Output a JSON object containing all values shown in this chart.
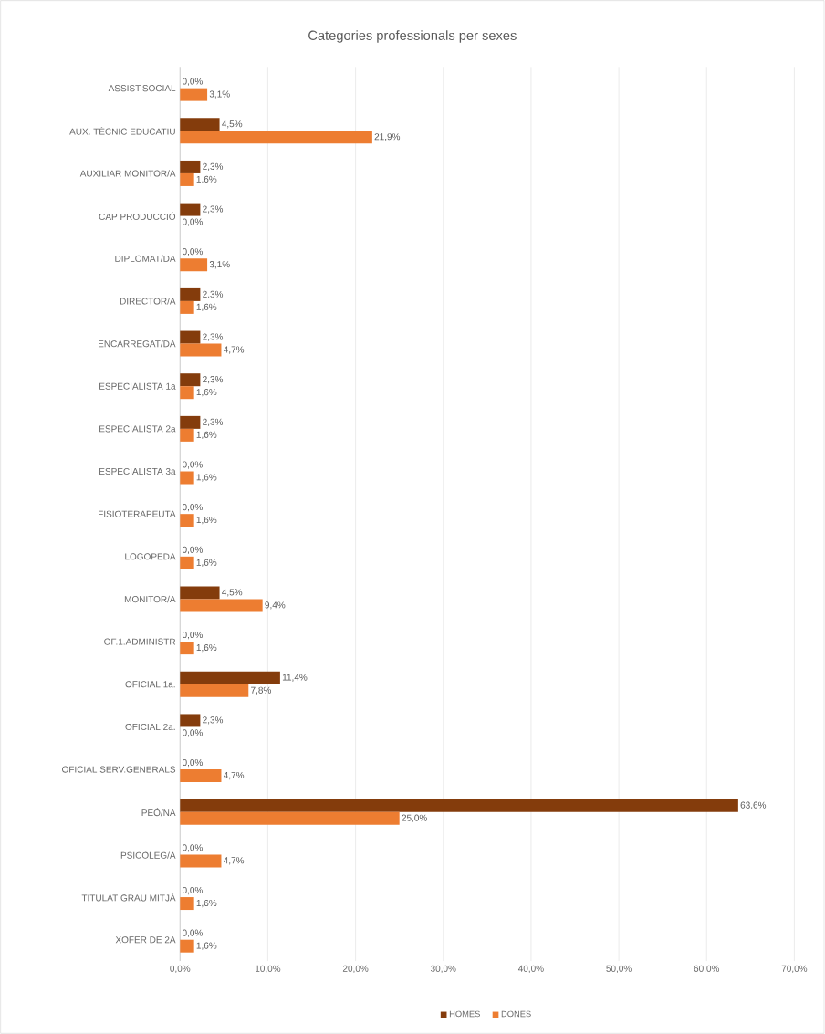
{
  "chart_data": {
    "type": "bar",
    "orientation": "horizontal",
    "title": "Categories professionals per sexes",
    "categories": [
      "ASSIST.SOCIAL",
      "AUX. TÈCNIC EDUCATIU",
      "AUXILIAR MONITOR/A",
      "CAP PRODUCCIÓ",
      "DIPLOMAT/DA",
      "DIRECTOR/A",
      "ENCARREGAT/DA",
      "ESPECIALISTA 1a",
      "ESPECIALISTA 2a",
      "ESPECIALISTA 3a",
      "FISIOTERAPEUTA",
      "LOGOPEDA",
      "MONITOR/A",
      "OF.1.ADMINISTR",
      "OFICIAL 1a.",
      "OFICIAL 2a.",
      "OFICIAL SERV.GENERALS",
      "PEÓ/NA",
      "PSICÒLEG/A",
      "TITULAT GRAU MITJÀ",
      "XOFER DE 2A"
    ],
    "series": [
      {
        "name": "HOMES",
        "color": "#843c0c",
        "values": [
          0.0,
          4.5,
          2.3,
          2.3,
          0.0,
          2.3,
          2.3,
          2.3,
          2.3,
          0.0,
          0.0,
          0.0,
          4.5,
          0.0,
          11.4,
          2.3,
          0.0,
          63.6,
          0.0,
          0.0,
          0.0
        ],
        "value_labels": [
          "0,0%",
          "4,5%",
          "2,3%",
          "2,3%",
          "0,0%",
          "2,3%",
          "2,3%",
          "2,3%",
          "2,3%",
          "0,0%",
          "0,0%",
          "0,0%",
          "4,5%",
          "0,0%",
          "11,4%",
          "2,3%",
          "0,0%",
          "63,6%",
          "0,0%",
          "0,0%",
          "0,0%"
        ]
      },
      {
        "name": "DONES",
        "color": "#ed7d31",
        "values": [
          3.1,
          21.9,
          1.6,
          0.0,
          3.1,
          1.6,
          4.7,
          1.6,
          1.6,
          1.6,
          1.6,
          1.6,
          9.4,
          1.6,
          7.8,
          0.0,
          4.7,
          25.0,
          4.7,
          1.6,
          1.6
        ],
        "value_labels": [
          "3,1%",
          "21,9%",
          "1,6%",
          "0,0%",
          "3,1%",
          "1,6%",
          "4,7%",
          "1,6%",
          "1,6%",
          "1,6%",
          "1,6%",
          "1,6%",
          "9,4%",
          "1,6%",
          "7,8%",
          "0,0%",
          "4,7%",
          "25,0%",
          "4,7%",
          "1,6%",
          "1,6%"
        ]
      }
    ],
    "xlim": [
      0,
      70
    ],
    "xticks": [
      {
        "value": 0,
        "label": "0,0%"
      },
      {
        "value": 10,
        "label": "10,0%"
      },
      {
        "value": 20,
        "label": "20,0%"
      },
      {
        "value": 30,
        "label": "30,0%"
      },
      {
        "value": 40,
        "label": "40,0%"
      },
      {
        "value": 50,
        "label": "50,0%"
      },
      {
        "value": 60,
        "label": "60,0%"
      },
      {
        "value": 70,
        "label": "70,0%"
      }
    ],
    "grid": "x",
    "legend": "bottom"
  }
}
